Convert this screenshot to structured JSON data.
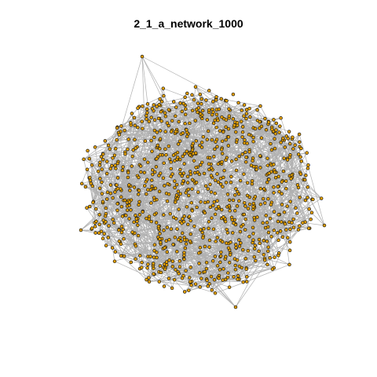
{
  "title": "2_1_a_network_1000",
  "network": {
    "node_count": 1000,
    "colors": {
      "node_fill": "#e6a000",
      "node_stroke": "#1a1a1a",
      "edge": "#b0b0b0",
      "background": "#ffffff"
    }
  }
}
